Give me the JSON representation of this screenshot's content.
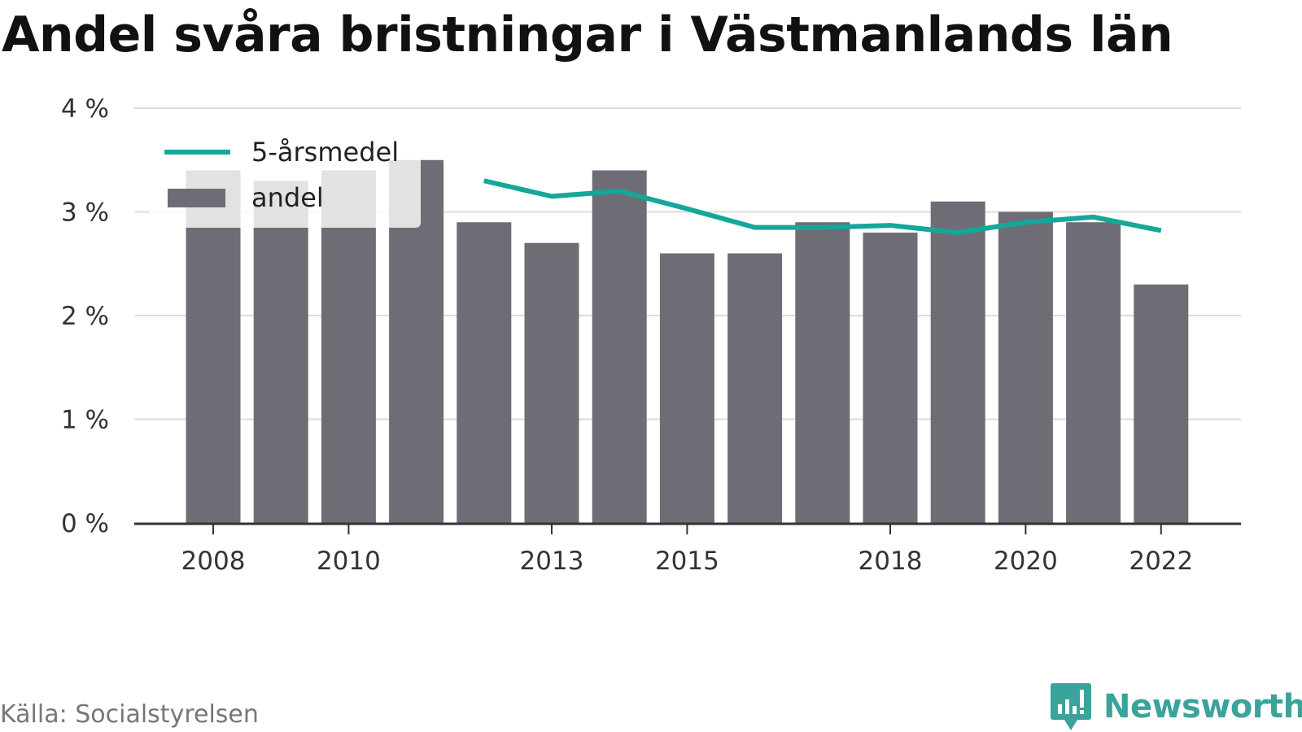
{
  "title": "Andel svåra bristningar i Västmanlands län",
  "source": "Källa: Socialstyrelsen",
  "brand": {
    "name": "Newsworthy",
    "logo_icon": "newsworthy-logo-icon",
    "color": "#3aa39b"
  },
  "chart_data": {
    "type": "bar",
    "x": [
      2008,
      2009,
      2010,
      2011,
      2012,
      2013,
      2014,
      2015,
      2016,
      2017,
      2018,
      2019,
      2020,
      2021,
      2022
    ],
    "x_tick_labels": [
      "2008",
      "2010",
      "2013",
      "2015",
      "2018",
      "2020",
      "2022"
    ],
    "y_tick_labels": [
      "0 %",
      "1 %",
      "2 %",
      "3 %",
      "4 %"
    ],
    "ylim": [
      0,
      4
    ],
    "y_unit": "%",
    "grid": true,
    "legend_position": "top-left",
    "series": [
      {
        "name": "andel",
        "type": "bar",
        "color": "#6e6d75",
        "values": [
          3.4,
          3.3,
          3.4,
          3.5,
          2.9,
          2.7,
          3.4,
          2.6,
          2.6,
          2.9,
          2.8,
          3.1,
          3.0,
          2.9,
          2.3
        ]
      },
      {
        "name": "5-årsmedel",
        "type": "line",
        "color": "#14a89a",
        "values": [
          null,
          null,
          null,
          null,
          3.3,
          3.15,
          3.2,
          3.03,
          2.85,
          2.85,
          2.87,
          2.8,
          2.9,
          2.95,
          2.82
        ]
      }
    ]
  }
}
